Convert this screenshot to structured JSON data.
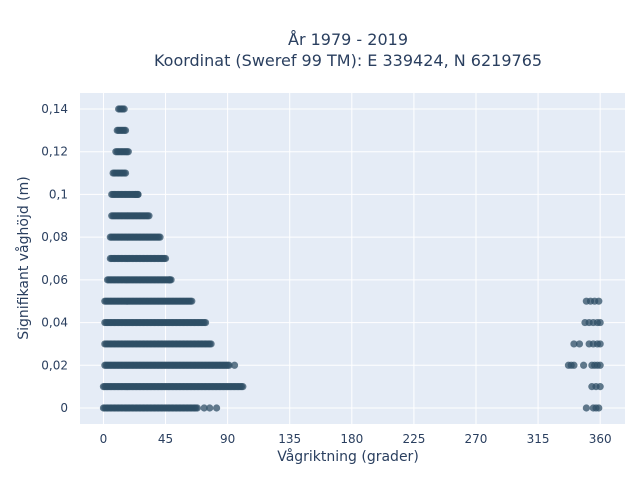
{
  "chart_data": {
    "type": "scatter",
    "title_line1": "År 1979 - 2019",
    "title_line2": "Koordinat (Sweref 99 TM): E 339424, N 6219765",
    "xlabel": "Vågriktning (grader)",
    "ylabel": "Signifikant våghöjd (m)",
    "xlim": [
      -17,
      378
    ],
    "ylim": [
      -0.0075,
      0.1475
    ],
    "x_ticks": [
      0,
      45,
      90,
      135,
      180,
      225,
      270,
      315,
      360
    ],
    "x_tick_labels": [
      "0",
      "45",
      "90",
      "135",
      "180",
      "225",
      "270",
      "315",
      "360"
    ],
    "y_ticks": [
      0,
      0.02,
      0.04,
      0.06,
      0.08,
      0.1,
      0.12,
      0.14
    ],
    "y_tick_labels": [
      "0",
      "0,02",
      "0,04",
      "0,06",
      "0,08",
      "0,1",
      "0,12",
      "0,14"
    ],
    "grid": true,
    "marker_color": "#2f4f66",
    "plot_background": "#e5ecf6",
    "bands": [
      {
        "y": 0.14,
        "x_min": 11,
        "x_max": 15
      },
      {
        "y": 0.13,
        "x_min": 10,
        "x_max": 16
      },
      {
        "y": 0.12,
        "x_min": 9,
        "x_max": 18
      },
      {
        "y": 0.11,
        "x_min": 7,
        "x_max": 16
      },
      {
        "y": 0.1,
        "x_min": 6,
        "x_max": 25
      },
      {
        "y": 0.09,
        "x_min": 6,
        "x_max": 33
      },
      {
        "y": 0.08,
        "x_min": 5,
        "x_max": 41
      },
      {
        "y": 0.07,
        "x_min": 5,
        "x_max": 45
      },
      {
        "y": 0.06,
        "x_min": 3,
        "x_max": 49
      },
      {
        "y": 0.05,
        "x_min": 1,
        "x_max": 64
      },
      {
        "y": 0.04,
        "x_min": 1,
        "x_max": 74
      },
      {
        "y": 0.03,
        "x_min": 1,
        "x_max": 78
      },
      {
        "y": 0.02,
        "x_min": 1,
        "x_max": 91
      },
      {
        "y": 0.01,
        "x_min": 0,
        "x_max": 101
      },
      {
        "y": 0.0,
        "x_min": 0,
        "x_max": 68
      }
    ],
    "scattered_points": [
      {
        "x": 23,
        "y": 0.1
      },
      {
        "x": 25,
        "y": 0.1
      },
      {
        "x": 48,
        "y": 0.06
      },
      {
        "x": 95,
        "y": 0.02
      },
      {
        "x": 73,
        "y": 0.0
      },
      {
        "x": 77,
        "y": 0.0
      },
      {
        "x": 82,
        "y": 0.0
      },
      {
        "x": 350,
        "y": 0.05
      },
      {
        "x": 353,
        "y": 0.05
      },
      {
        "x": 356,
        "y": 0.05
      },
      {
        "x": 359,
        "y": 0.05
      },
      {
        "x": 349,
        "y": 0.04
      },
      {
        "x": 352,
        "y": 0.04
      },
      {
        "x": 355,
        "y": 0.04
      },
      {
        "x": 358,
        "y": 0.04
      },
      {
        "x": 360,
        "y": 0.04
      },
      {
        "x": 341,
        "y": 0.03
      },
      {
        "x": 345,
        "y": 0.03
      },
      {
        "x": 352,
        "y": 0.03
      },
      {
        "x": 355,
        "y": 0.03
      },
      {
        "x": 358,
        "y": 0.03
      },
      {
        "x": 360,
        "y": 0.03
      },
      {
        "x": 337,
        "y": 0.02
      },
      {
        "x": 339,
        "y": 0.02
      },
      {
        "x": 341,
        "y": 0.02
      },
      {
        "x": 348,
        "y": 0.02
      },
      {
        "x": 354,
        "y": 0.02
      },
      {
        "x": 356,
        "y": 0.02
      },
      {
        "x": 358,
        "y": 0.02
      },
      {
        "x": 360,
        "y": 0.02
      },
      {
        "x": 354,
        "y": 0.01
      },
      {
        "x": 357,
        "y": 0.01
      },
      {
        "x": 360,
        "y": 0.01
      },
      {
        "x": 350,
        "y": 0.0
      },
      {
        "x": 355,
        "y": 0.0
      },
      {
        "x": 357,
        "y": 0.0
      },
      {
        "x": 359,
        "y": 0.0
      }
    ]
  }
}
